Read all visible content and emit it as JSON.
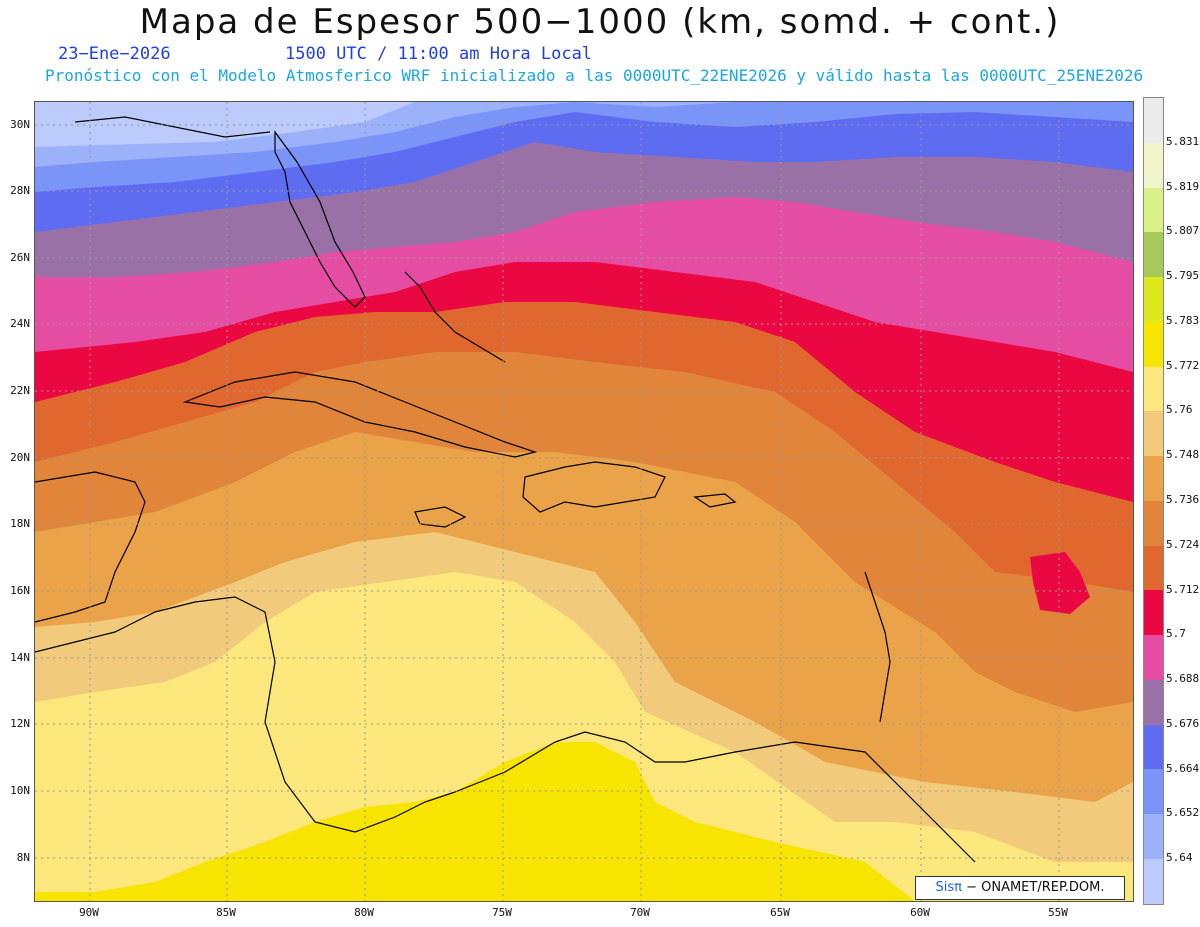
{
  "title": "Mapa de Espesor 500−1000 (km, somd. + cont.)",
  "date": "23−Ene−2026",
  "time": "1500 UTC / 11:00 am Hora Local",
  "description": "Pronóstico con el Modelo Atmosferico WRF inicializado a las 0000UTC_22ENE2026 y válido hasta las  0000UTC_25ENE2026",
  "credit": {
    "brand": "Sisπ",
    "rest": " − ONAMET/REP.DOM."
  },
  "lat_labels": [
    "30N",
    "28N",
    "26N",
    "24N",
    "22N",
    "20N",
    "18N",
    "16N",
    "14N",
    "12N",
    "10N",
    "8N"
  ],
  "lon_labels": [
    "90W",
    "85W",
    "80W",
    "75W",
    "70W",
    "65W",
    "60W",
    "55W"
  ],
  "colorbar": {
    "labels": [
      "5.831",
      "5.819",
      "5.807",
      "5.795",
      "5.783",
      "5.772",
      "5.76",
      "5.748",
      "5.736",
      "5.724",
      "5.712",
      "5.7",
      "5.688",
      "5.676",
      "5.664",
      "5.652",
      "5.64"
    ],
    "colors": [
      "#ebebeb",
      "#f2f5cc",
      "#dcf08a",
      "#a7c95c",
      "#dde81c",
      "#f7e400",
      "#fbe77c",
      "#f1ca7c",
      "#eaa348",
      "#e0853a",
      "#e0682f",
      "#ea0742",
      "#e54da2",
      "#9a71a6",
      "#5e6cf2",
      "#7b94f8",
      "#9bb2fb",
      "#bccafc"
    ]
  }
}
